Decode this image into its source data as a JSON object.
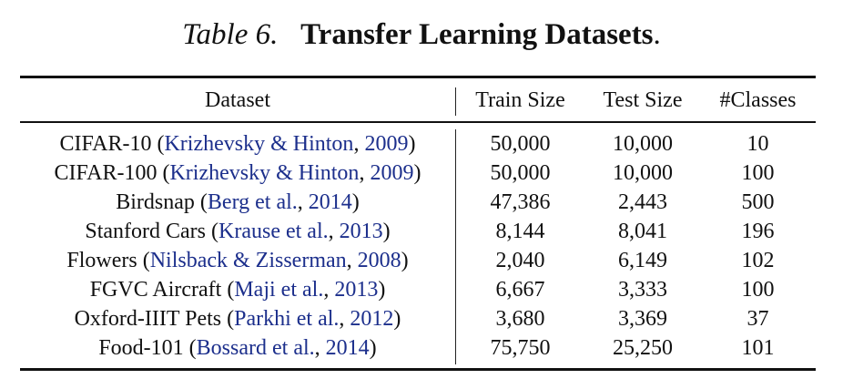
{
  "caption": {
    "label": "Table 6.",
    "title": "Transfer Learning Datasets",
    "end": "."
  },
  "table": {
    "headers": [
      "Dataset",
      "Train Size",
      "Test Size",
      "#Classes"
    ],
    "rows": [
      {
        "name": "CIFAR-10",
        "cite_open": "(",
        "cite_text": "Krizhevsky & Hinton",
        "cite_sep": ", ",
        "cite_year": "2009",
        "cite_close": ")",
        "train": "50,000",
        "test": "10,000",
        "classes": "10"
      },
      {
        "name": "CIFAR-100",
        "cite_open": "(",
        "cite_text": "Krizhevsky & Hinton",
        "cite_sep": ", ",
        "cite_year": "2009",
        "cite_close": ")",
        "train": "50,000",
        "test": "10,000",
        "classes": "100"
      },
      {
        "name": "Birdsnap",
        "cite_open": "(",
        "cite_text": "Berg et al.",
        "cite_sep": ", ",
        "cite_year": "2014",
        "cite_close": ")",
        "train": "47,386",
        "test": "2,443",
        "classes": "500"
      },
      {
        "name": "Stanford Cars",
        "cite_open": "(",
        "cite_text": "Krause et al.",
        "cite_sep": ", ",
        "cite_year": "2013",
        "cite_close": ")",
        "train": "8,144",
        "test": "8,041",
        "classes": "196"
      },
      {
        "name": "Flowers",
        "cite_open": "(",
        "cite_text": "Nilsback & Zisserman",
        "cite_sep": ", ",
        "cite_year": "2008",
        "cite_close": ")",
        "train": "2,040",
        "test": "6,149",
        "classes": "102"
      },
      {
        "name": "FGVC Aircraft",
        "cite_open": "(",
        "cite_text": "Maji et al.",
        "cite_sep": ", ",
        "cite_year": "2013",
        "cite_close": ")",
        "train": "6,667",
        "test": "3,333",
        "classes": "100"
      },
      {
        "name": "Oxford-IIIT Pets",
        "cite_open": "(",
        "cite_text": "Parkhi et al.",
        "cite_sep": ", ",
        "cite_year": "2012",
        "cite_close": ")",
        "train": "3,680",
        "test": "3,369",
        "classes": "37"
      },
      {
        "name": "Food-101",
        "cite_open": "(",
        "cite_text": "Bossard et al.",
        "cite_sep": ", ",
        "cite_year": "2014",
        "cite_close": ")",
        "train": "75,750",
        "test": "25,250",
        "classes": "101"
      }
    ]
  },
  "colors": {
    "text": "#111111",
    "citation": "#1c2f8c"
  }
}
